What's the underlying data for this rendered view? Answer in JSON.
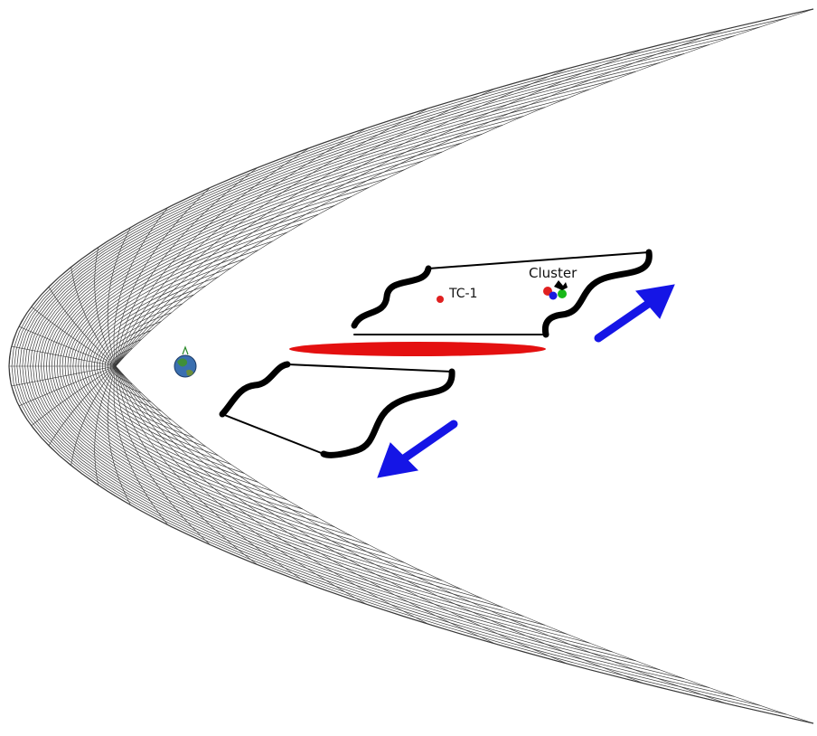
{
  "labels": {
    "tc1": "TC-1",
    "cluster": "Cluster"
  },
  "colors": {
    "grid": "#3a3a3a",
    "plasma_sheet": "#e41010",
    "arrow": "#1515e6",
    "bracket": "#000000",
    "tc1_marker": "#e02020",
    "cluster_markers": [
      "#e02020",
      "#1a1ae0",
      "#18b818",
      "#000000"
    ]
  },
  "icons": {
    "earth": "earth-icon"
  }
}
